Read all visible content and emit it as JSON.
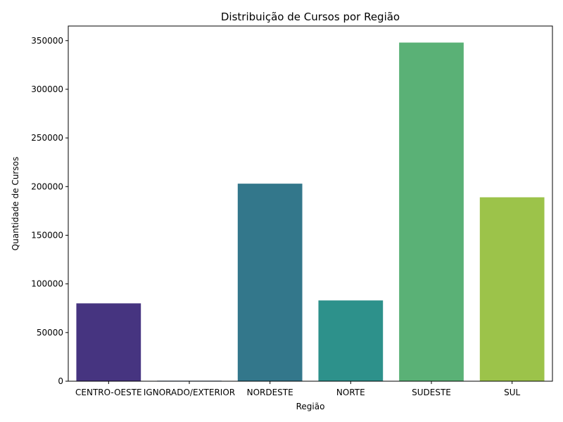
{
  "chart_data": {
    "type": "bar",
    "title": "Distribuição de Cursos por Região",
    "xlabel": "Região",
    "ylabel": "Quantidade de Cursos",
    "categories": [
      "CENTRO-OESTE",
      "IGNORADO/EXTERIOR",
      "NORDESTE",
      "NORTE",
      "SUDESTE",
      "SUL"
    ],
    "values": [
      80000,
      500,
      203000,
      83000,
      348000,
      189000
    ],
    "colors": [
      "#463480",
      "#38598c",
      "#33778b",
      "#2d918b",
      "#5ab176",
      "#9cc34a"
    ],
    "ylim": [
      0,
      365000
    ],
    "yticks": [
      0,
      50000,
      100000,
      150000,
      200000,
      250000,
      300000,
      350000
    ],
    "grid": false,
    "legend": "none"
  }
}
